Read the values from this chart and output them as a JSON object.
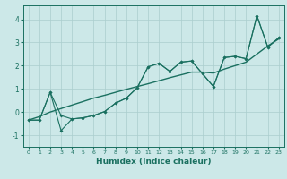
{
  "xlabel": "Humidex (Indice chaleur)",
  "background_color": "#cce8e8",
  "grid_color": "#aacece",
  "line_color": "#1a7060",
  "xlim": [
    -0.5,
    23.5
  ],
  "ylim": [
    -1.5,
    4.6
  ],
  "xticks": [
    0,
    1,
    2,
    3,
    4,
    5,
    6,
    7,
    8,
    9,
    10,
    11,
    12,
    13,
    14,
    15,
    16,
    17,
    18,
    19,
    20,
    21,
    22,
    23
  ],
  "yticks": [
    -1,
    0,
    1,
    2,
    3,
    4
  ],
  "line_zigzag_x": [
    0,
    1,
    2,
    3,
    4,
    5,
    6,
    7,
    8,
    9,
    10,
    11,
    12,
    13,
    14,
    15,
    16,
    17,
    18,
    19,
    20,
    21,
    22,
    23
  ],
  "line_zigzag_y": [
    -0.35,
    -0.35,
    0.85,
    -0.15,
    -0.3,
    -0.25,
    -0.15,
    0.02,
    0.38,
    0.6,
    1.05,
    1.95,
    2.1,
    1.75,
    2.15,
    2.2,
    1.65,
    1.1,
    2.35,
    2.4,
    2.3,
    4.15,
    2.8,
    3.2
  ],
  "line_trend_x": [
    0,
    1,
    2,
    3,
    4,
    5,
    6,
    7,
    8,
    9,
    10,
    11,
    12,
    13,
    14,
    15,
    16,
    17,
    18,
    19,
    20,
    21,
    22,
    23
  ],
  "line_trend_y": [
    -0.35,
    -0.2,
    0.0,
    0.15,
    0.3,
    0.45,
    0.6,
    0.72,
    0.85,
    0.98,
    1.1,
    1.22,
    1.35,
    1.48,
    1.6,
    1.72,
    1.72,
    1.68,
    1.85,
    2.0,
    2.15,
    2.5,
    2.85,
    3.15
  ],
  "line_lower_x": [
    0,
    1,
    2,
    3,
    4,
    5,
    6,
    7,
    8,
    9,
    10,
    11,
    12,
    13,
    14,
    15,
    16,
    17,
    18,
    19,
    20,
    21,
    22,
    23
  ],
  "line_lower_y": [
    -0.35,
    -0.35,
    0.85,
    -0.8,
    -0.3,
    -0.25,
    -0.15,
    0.02,
    0.38,
    0.6,
    1.05,
    1.95,
    2.1,
    1.75,
    2.15,
    2.2,
    1.65,
    1.1,
    2.35,
    2.4,
    2.3,
    4.15,
    2.8,
    3.2
  ]
}
